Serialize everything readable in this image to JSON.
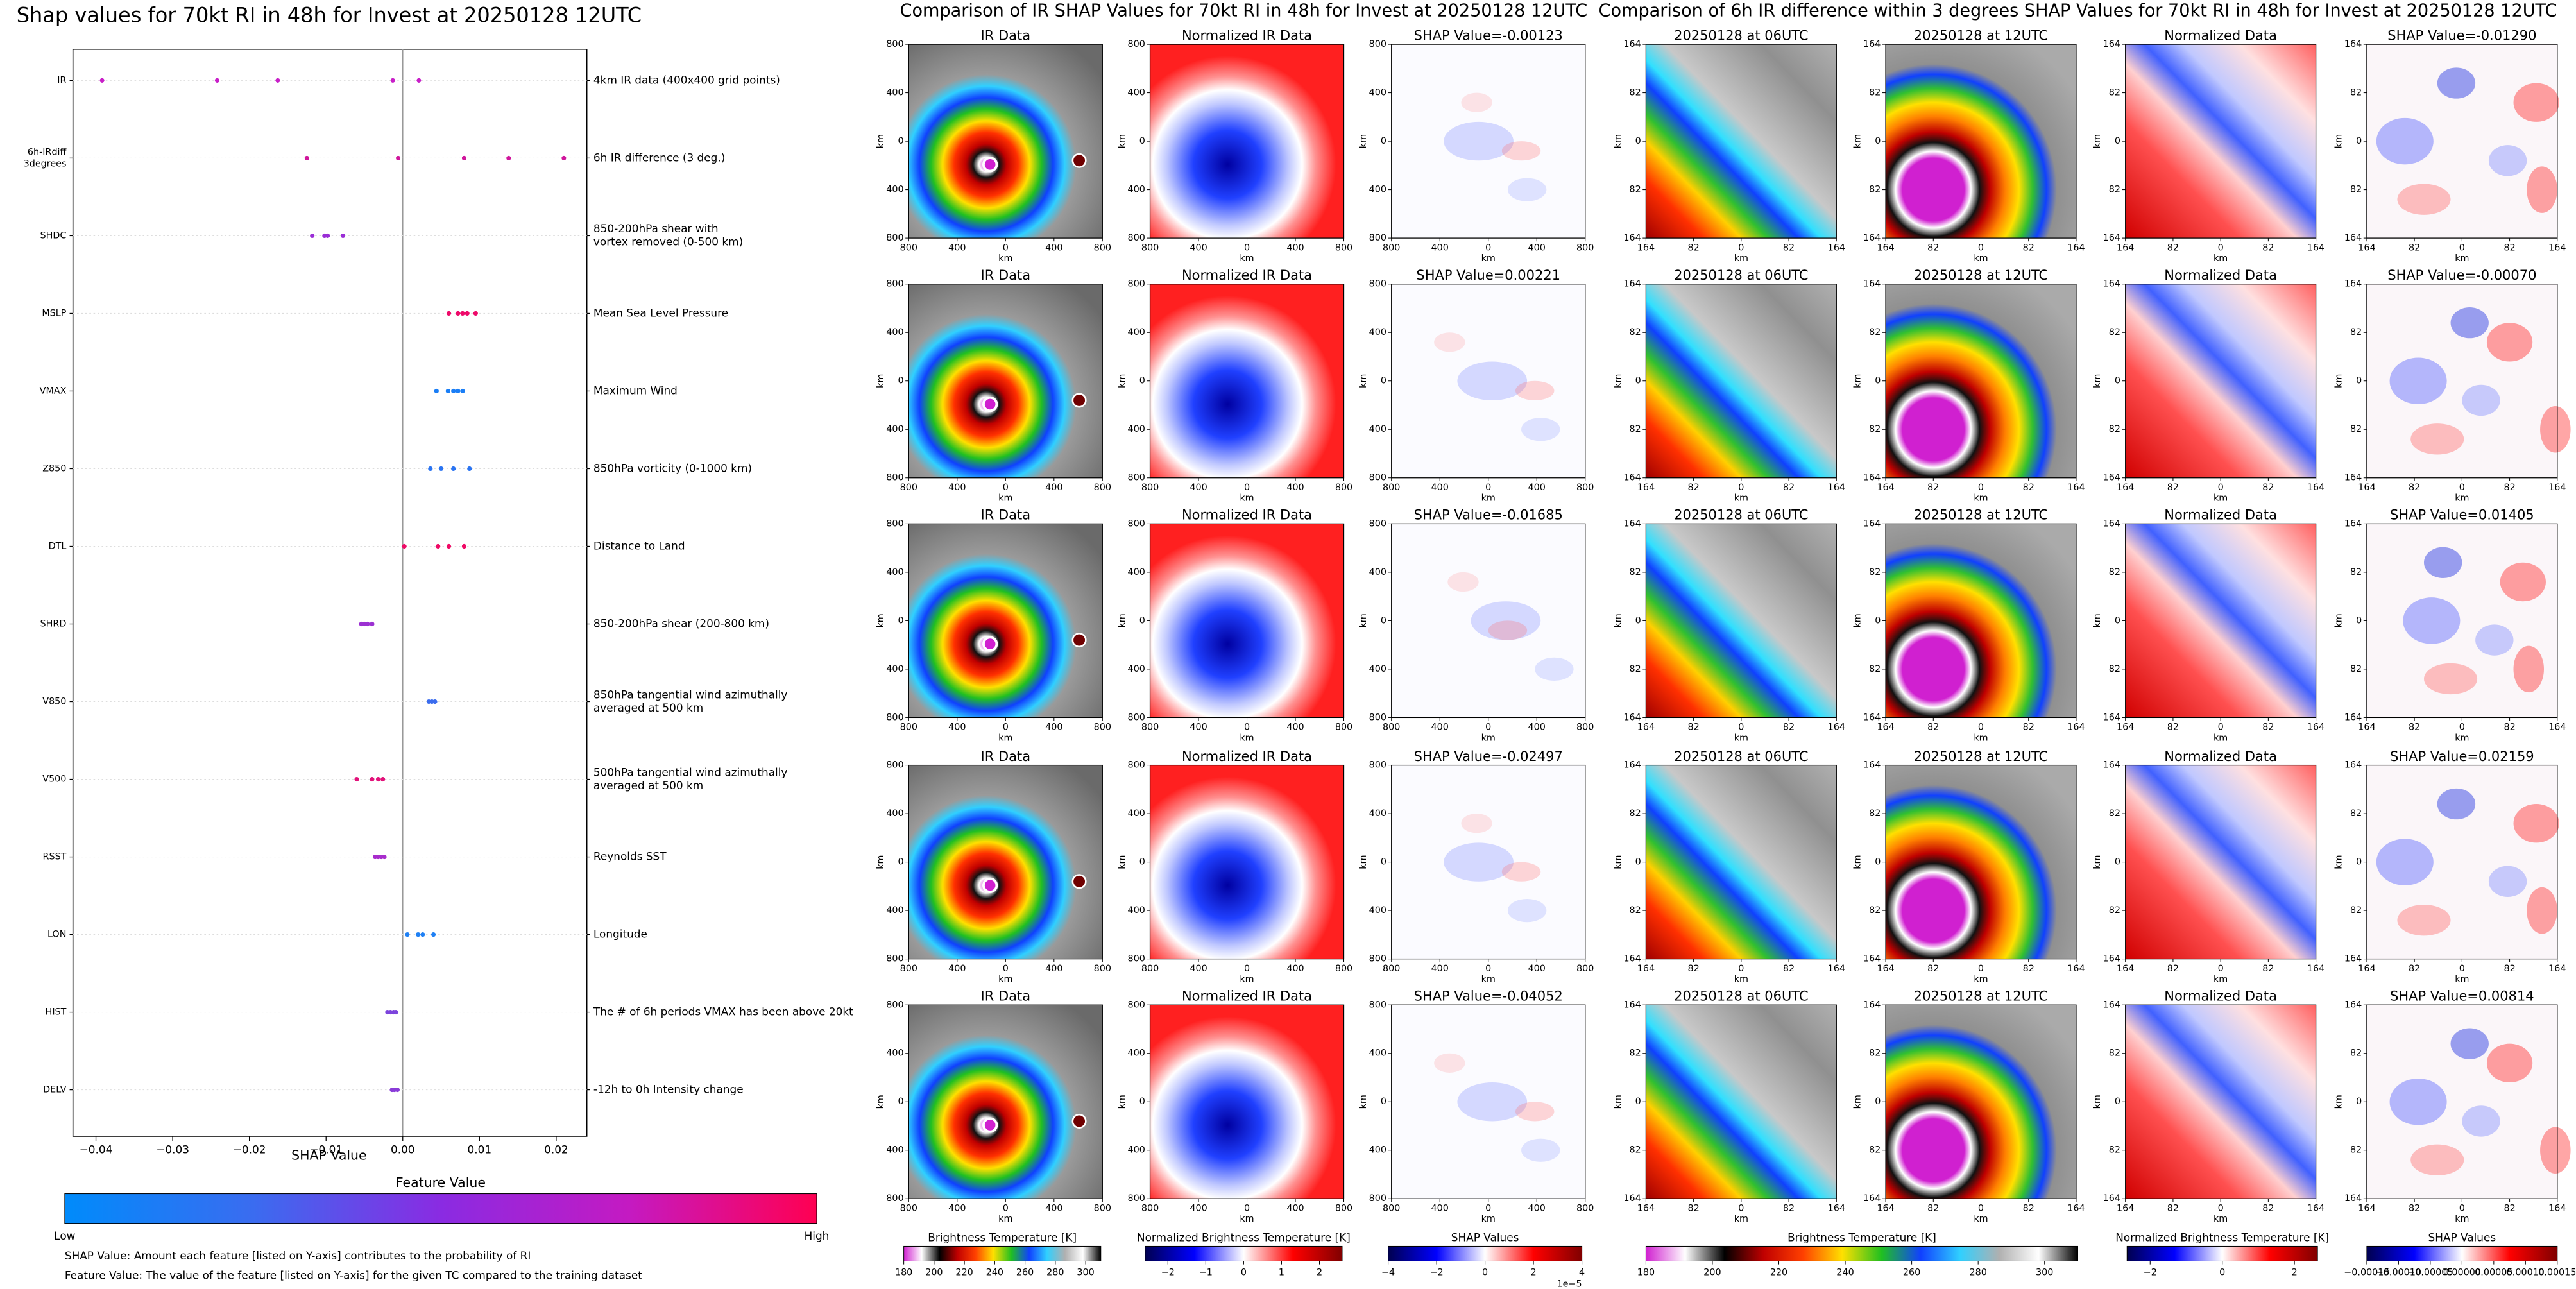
{
  "chart_data": {
    "type": "strip",
    "title": "Shap values for 70kt RI in 48h for Invest at 20250128 12UTC",
    "xlabel": "SHAP Value",
    "xlim": [
      -0.043,
      0.024
    ],
    "xticks": [
      {
        "value": -0.04,
        "label": "−0.04"
      },
      {
        "value": -0.03,
        "label": "−0.03"
      },
      {
        "value": -0.02,
        "label": "−0.02"
      },
      {
        "value": -0.01,
        "label": "−0.01"
      },
      {
        "value": 0,
        "label": "0.00"
      },
      0.01,
      0.02
    ],
    "series": [
      {
        "name": [
          "IR"
        ],
        "description": [
          "4km IR data (400x400 grid points)"
        ],
        "color": "#c81fc8",
        "values": [
          -0.0392,
          -0.0242,
          -0.0163,
          -0.0013,
          0.0021
        ]
      },
      {
        "name": [
          "6h-IRdiff",
          "3degrees"
        ],
        "description": [
          "6h IR difference (3 deg.)"
        ],
        "color": "#d0169c",
        "values": [
          -0.0125,
          -0.0006,
          0.008,
          0.0138,
          0.021
        ]
      },
      {
        "name": [
          "SHDC"
        ],
        "description": [
          "850-200hPa shear with",
          "vortex removed (0-500 km)"
        ],
        "color": "#9a2ed6",
        "values": [
          -0.0118,
          -0.0102,
          -0.0098,
          -0.0078
        ]
      },
      {
        "name": [
          "MSLP"
        ],
        "description": [
          "Mean Sea Level Pressure"
        ],
        "color": "#ee0a6a",
        "values": [
          0.006,
          0.0072,
          0.0078,
          0.0084,
          0.0095
        ]
      },
      {
        "name": [
          "VMAX"
        ],
        "description": [
          "Maximum Wind"
        ],
        "color": "#1a7ef6",
        "values": [
          0.0044,
          0.0059,
          0.0066,
          0.0072,
          0.0078
        ]
      },
      {
        "name": [
          "Z850"
        ],
        "description": [
          "850hPa vorticity (0-1000 km)"
        ],
        "color": "#2a74f2",
        "values": [
          0.0036,
          0.005,
          0.0066,
          0.0087
        ]
      },
      {
        "name": [
          "DTL"
        ],
        "description": [
          "Distance to Land"
        ],
        "color": "#f00a66",
        "values": [
          0.0002,
          0.0046,
          0.006,
          0.008
        ]
      },
      {
        "name": [
          "SHRD"
        ],
        "description": [
          "850-200hPa shear (200-800 km)"
        ],
        "color": "#9c30d2",
        "values": [
          -0.0054,
          -0.005,
          -0.0046,
          -0.004
        ]
      },
      {
        "name": [
          "V850"
        ],
        "description": [
          "850hPa tangential wind azimuthally",
          "averaged at 500 km"
        ],
        "color": "#3a6cee",
        "values": [
          0.0034,
          0.0038,
          0.0042
        ]
      },
      {
        "name": [
          "V500"
        ],
        "description": [
          "500hPa tangential wind azimuthally",
          "averaged at 500 km"
        ],
        "color": "#e2127a",
        "values": [
          -0.006,
          -0.004,
          -0.0032,
          -0.0026
        ]
      },
      {
        "name": [
          "RSST"
        ],
        "description": [
          "Reynolds SST"
        ],
        "color": "#a82ccc",
        "values": [
          -0.0036,
          -0.0032,
          -0.0028,
          -0.0024
        ]
      },
      {
        "name": [
          "LON"
        ],
        "description": [
          "Longitude"
        ],
        "color": "#1f80f4",
        "values": [
          0.0006,
          0.002,
          0.0026,
          0.004
        ]
      },
      {
        "name": [
          "HIST"
        ],
        "description": [
          "The # of 6h periods VMAX has been above 20kt"
        ],
        "color": "#7c44dc",
        "values": [
          -0.002,
          -0.0016,
          -0.0012,
          -0.0009
        ]
      },
      {
        "name": [
          "DELV"
        ],
        "description": [
          "-12h to 0h Intensity change"
        ],
        "color": "#8a3cd8",
        "values": [
          -0.0014,
          -0.0011,
          -0.0007
        ]
      }
    ],
    "colorbar": {
      "title": "Feature Value",
      "low": "Low",
      "high": "High",
      "colors": [
        "#008bfb",
        "#3a6cf0",
        "#8a2be2",
        "#c41ac2",
        "#ff0052"
      ]
    },
    "notes": [
      "SHAP Value: Amount each feature [listed on Y-axis] contributes to the probability of RI",
      "Feature Value: The value of the feature [listed on Y-axis] for the given TC compared to the training dataset"
    ]
  },
  "figures": [
    {
      "title": "Comparison of IR SHAP Values for 70kt RI in 48h for Invest at 20250128 12UTC",
      "ticks": [
        800,
        400,
        0,
        400,
        800
      ],
      "axis_label": "km",
      "rows": [
        {
          "titles": [
            "IR Data",
            "Normalized IR Data",
            "SHAP Value=-0.00123"
          ]
        },
        {
          "titles": [
            "IR Data",
            "Normalized IR Data",
            "SHAP Value=0.00221"
          ]
        },
        {
          "titles": [
            "IR Data",
            "Normalized IR Data",
            "SHAP Value=-0.01685"
          ]
        },
        {
          "titles": [
            "IR Data",
            "Normalized IR Data",
            "SHAP Value=-0.02497"
          ]
        },
        {
          "titles": [
            "IR Data",
            "Normalized IR Data",
            "SHAP Value=-0.04052"
          ]
        }
      ],
      "colorbars": [
        {
          "label": "Brightness Temperature [K]",
          "lim": [
            180,
            310
          ],
          "ticks": [
            180,
            200,
            220,
            240,
            260,
            280,
            300
          ],
          "colors": [
            "#d020d0",
            "#ffffff",
            "#000000",
            "#c00000",
            "#ff4000",
            "#ffe000",
            "#20c020",
            "#1040ff",
            "#30d0ff",
            "#b0b0b0",
            "#ffffff",
            "#000000"
          ]
        },
        {
          "label": "Normalized Brightness Temperature [K]",
          "lim": [
            -2.6,
            2.6
          ],
          "ticks": [
            {
              "value": -2,
              "label": "−2"
            },
            {
              "value": -1,
              "label": "−1"
            },
            0,
            1,
            2
          ],
          "colors": [
            "#000050",
            "#0000ff",
            "#ffffff",
            "#ff0000",
            "#800000"
          ]
        },
        {
          "label": "SHAP Values",
          "lim": [
            -4,
            4
          ],
          "ticks": [
            {
              "value": -4,
              "label": "−4"
            },
            {
              "value": -2,
              "label": "−2"
            },
            0,
            2,
            4
          ],
          "offset": "1e−5",
          "colors": [
            "#000050",
            "#0000ff",
            "#ffffff",
            "#ff0000",
            "#800000"
          ]
        }
      ]
    },
    {
      "title": "Comparison of 6h IR difference within 3 degrees SHAP Values for 70kt RI in 48h for Invest at 20250128 12UTC",
      "ticks": [
        164,
        82,
        0,
        82,
        164
      ],
      "axis_label": "km",
      "rows": [
        {
          "titles": [
            "20250128 at 06UTC",
            "20250128 at 12UTC",
            "Normalized Data",
            "SHAP Value=-0.01290"
          ]
        },
        {
          "titles": [
            "20250128 at 06UTC",
            "20250128 at 12UTC",
            "Normalized Data",
            "SHAP Value=-0.00070"
          ]
        },
        {
          "titles": [
            "20250128 at 06UTC",
            "20250128 at 12UTC",
            "Normalized Data",
            "SHAP Value=0.01405"
          ]
        },
        {
          "titles": [
            "20250128 at 06UTC",
            "20250128 at 12UTC",
            "Normalized Data",
            "SHAP Value=0.02159"
          ]
        },
        {
          "titles": [
            "20250128 at 06UTC",
            "20250128 at 12UTC",
            "Normalized Data",
            "SHAP Value=0.00814"
          ]
        }
      ],
      "colorbars": [
        {
          "label": "Brightness Temperature [K]",
          "lim": [
            180,
            310
          ],
          "ticks": [
            180,
            200,
            220,
            240,
            260,
            280,
            300
          ],
          "colors": [
            "#d020d0",
            "#ffffff",
            "#000000",
            "#c00000",
            "#ff4000",
            "#ffe000",
            "#20c020",
            "#1040ff",
            "#30d0ff",
            "#b0b0b0",
            "#ffffff",
            "#000000"
          ]
        },
        {
          "label": "Normalized Brightness Temperature [K]",
          "lim": [
            -2.64,
            2.64
          ],
          "ticks": [
            {
              "value": -2,
              "label": "−2"
            },
            0,
            2
          ],
          "colors": [
            "#000050",
            "#0000ff",
            "#ffffff",
            "#ff0000",
            "#800000"
          ]
        },
        {
          "label": "SHAP Values",
          "lim": [
            -0.00015,
            0.00015
          ],
          "ticks": [
            {
              "value": -0.00015,
              "label": "−0.00015"
            },
            {
              "value": -0.0001,
              "label": "−0.00010"
            },
            {
              "value": -5e-05,
              "label": "−0.00005"
            },
            {
              "value": 0,
              "label": "0.00000"
            },
            {
              "value": 5e-05,
              "label": "0.00005"
            },
            {
              "value": 0.0001,
              "label": "0.00010"
            },
            {
              "value": 0.00015,
              "label": "0.00015"
            }
          ],
          "colors": [
            "#000050",
            "#0000ff",
            "#ffffff",
            "#ff0000",
            "#800000"
          ]
        }
      ]
    }
  ]
}
